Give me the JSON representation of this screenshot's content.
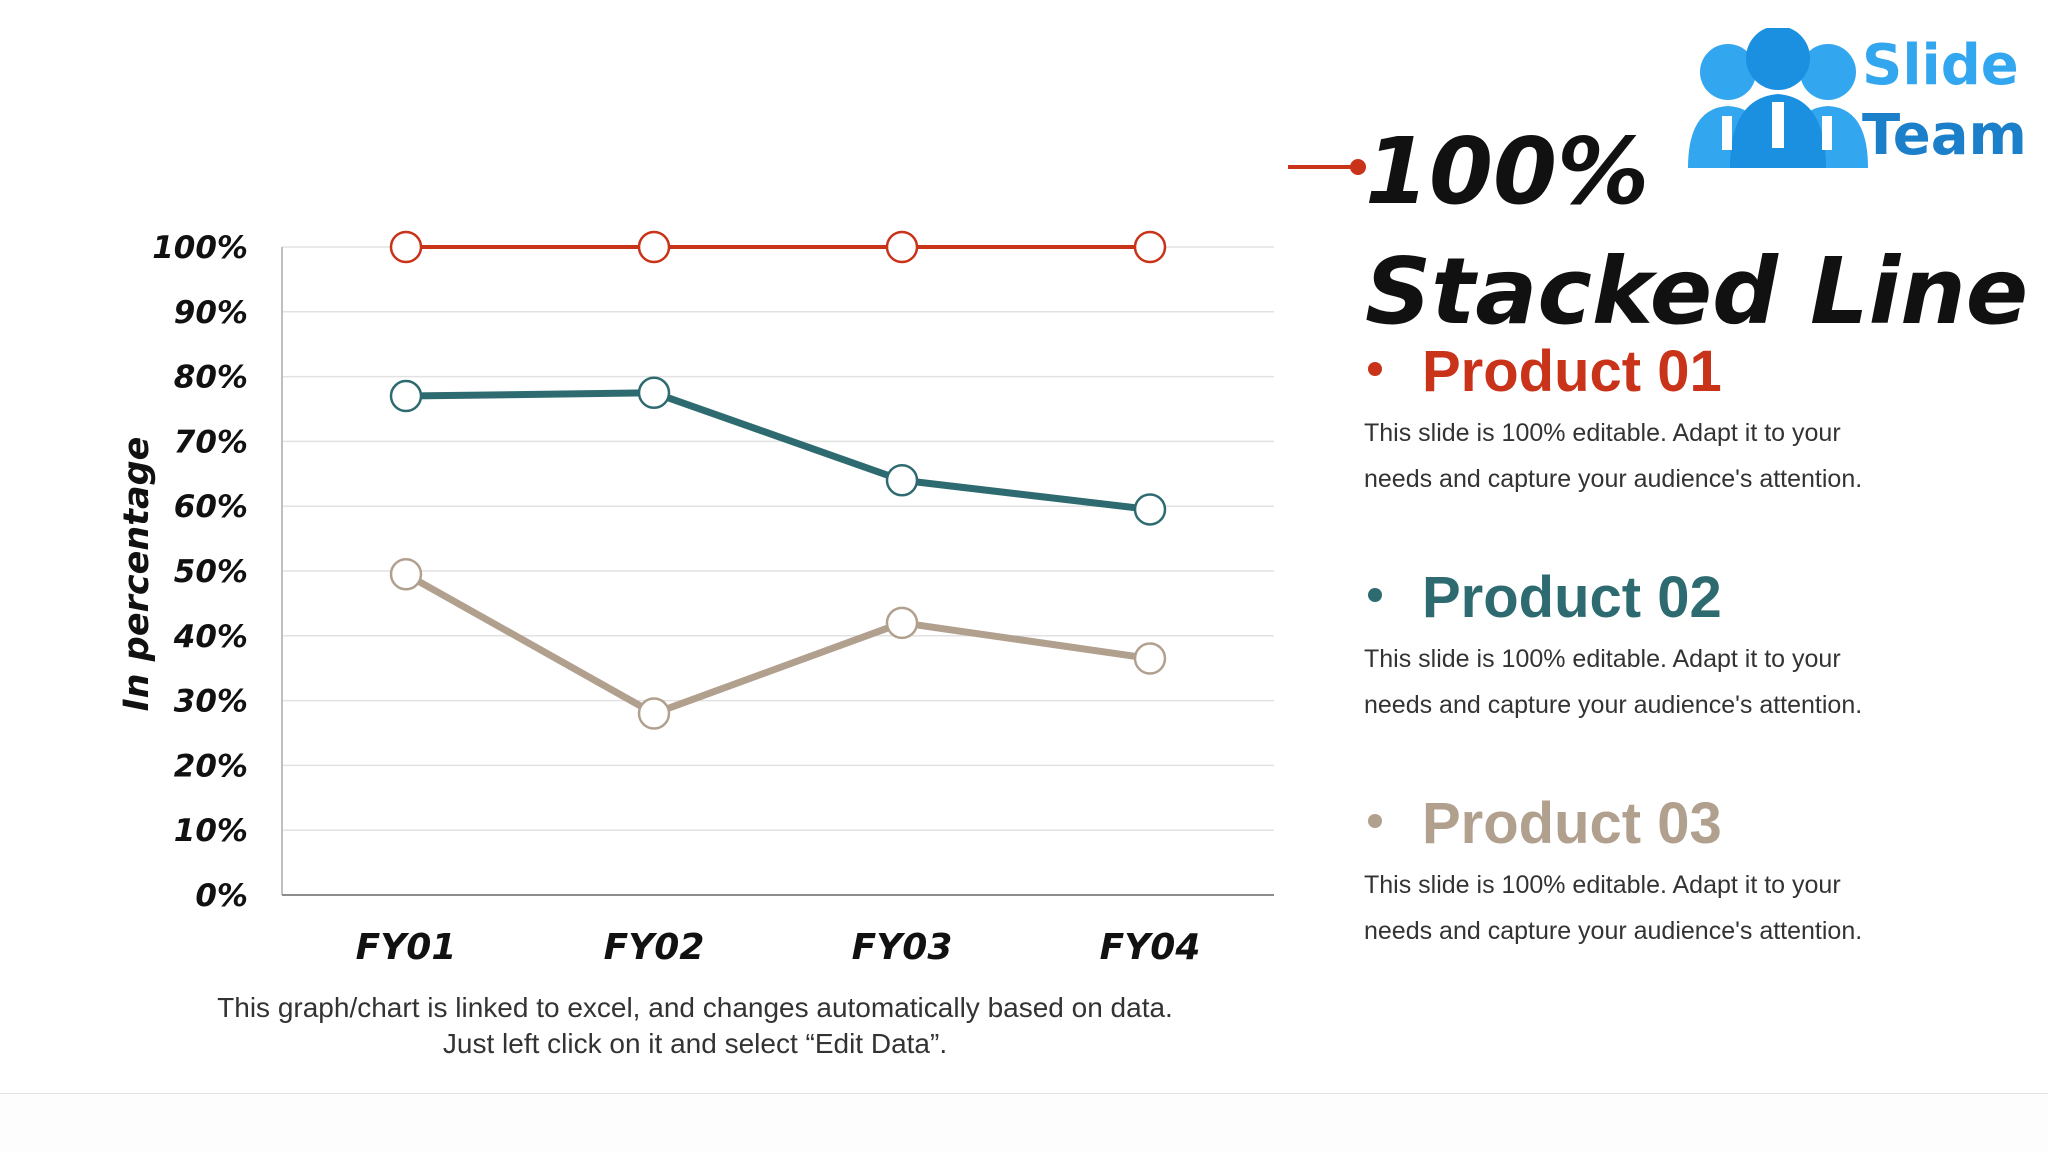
{
  "title": "100% Stacked Line",
  "logo": {
    "line1": "Slide",
    "line2": "Team"
  },
  "legend": [
    {
      "name": "Product 01",
      "color": "#c8331a",
      "description": "This slide is 100% editable. Adapt it to your needs and capture your audience's attention."
    },
    {
      "name": "Product 02",
      "color": "#2e6b70",
      "description": "This slide is 100% editable. Adapt it to your needs and capture your audience's attention."
    },
    {
      "name": "Product 03",
      "color": "#b2a08e",
      "description": "This slide is 100% editable. Adapt it to your needs and capture your audience's attention."
    }
  ],
  "chart_note": "This graph/chart is linked to excel, and changes automatically based on data. Just left click on it and select “Edit Data”.",
  "chart_data": {
    "type": "line",
    "title": "",
    "xlabel": "",
    "ylabel": "In percentage",
    "categories": [
      "FY01",
      "FY02",
      "FY03",
      "FY04"
    ],
    "y_ticks": [
      "0%",
      "10%",
      "20%",
      "30%",
      "40%",
      "50%",
      "60%",
      "70%",
      "80%",
      "90%",
      "100%"
    ],
    "ylim": [
      0,
      100
    ],
    "grid": true,
    "legend_position": "right",
    "series": [
      {
        "name": "Product 01",
        "color": "#c8331a",
        "values": [
          100,
          100,
          100,
          100
        ]
      },
      {
        "name": "Product 02",
        "color": "#2e6b70",
        "values": [
          77,
          77.5,
          64,
          59.5
        ]
      },
      {
        "name": "Product 03",
        "color": "#b2a08e",
        "values": [
          49.5,
          28,
          42,
          36.5
        ]
      }
    ]
  }
}
